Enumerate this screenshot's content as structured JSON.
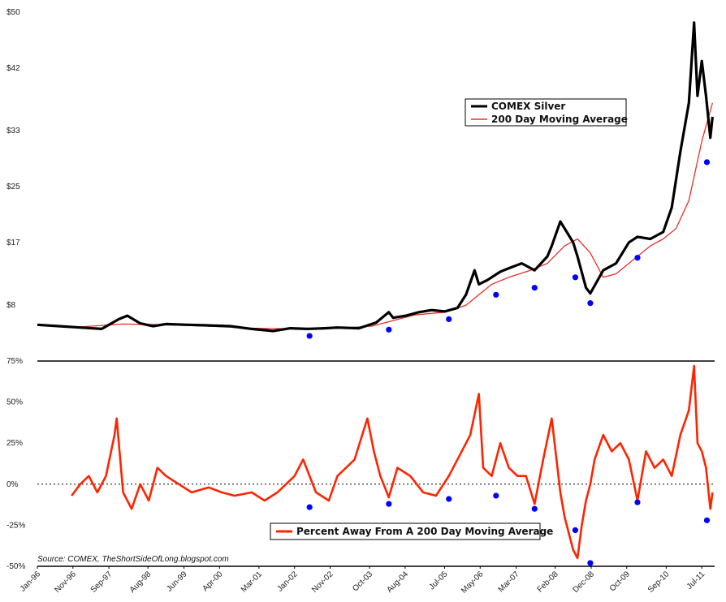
{
  "chart_data": [
    {
      "type": "line",
      "panel": "top",
      "title": "",
      "xlabel": "",
      "ylabel": "",
      "ylim": [
        0,
        50
      ],
      "y_ticks": [
        {
          "value": 8,
          "label": "$8"
        },
        {
          "value": 17,
          "label": "$17"
        },
        {
          "value": 25,
          "label": "$25"
        },
        {
          "value": 33,
          "label": "$33"
        },
        {
          "value": 42,
          "label": "$42"
        },
        {
          "value": 50,
          "label": "$50"
        }
      ],
      "legend": {
        "position": "upper-right",
        "entries": [
          {
            "label": "COMEX Silver",
            "color": "#000000"
          },
          {
            "label": "200 Day Moving Average",
            "color": "#e8302a"
          }
        ]
      },
      "series": [
        {
          "name": "COMEX Silver",
          "color": "#000000",
          "x": [
            1996.0,
            1996.5,
            1997.0,
            1997.5,
            1997.9,
            1998.1,
            1998.4,
            1998.7,
            1999.0,
            1999.5,
            2000.0,
            2000.5,
            2001.0,
            2001.5,
            2001.9,
            2002.3,
            2002.7,
            2003.0,
            2003.5,
            2003.9,
            2004.2,
            2004.3,
            2004.6,
            2004.9,
            2005.2,
            2005.5,
            2005.8,
            2006.0,
            2006.2,
            2006.3,
            2006.5,
            2006.8,
            2007.0,
            2007.3,
            2007.6,
            2007.9,
            2008.0,
            2008.2,
            2008.5,
            2008.6,
            2008.8,
            2008.9,
            2009.2,
            2009.5,
            2009.8,
            2010.0,
            2010.3,
            2010.6,
            2010.8,
            2011.0,
            2011.2,
            2011.32,
            2011.4,
            2011.5,
            2011.6,
            2011.7,
            2011.75
          ],
          "y": [
            5.2,
            5.0,
            4.8,
            4.6,
            6.0,
            6.5,
            5.4,
            5.0,
            5.3,
            5.2,
            5.1,
            5.0,
            4.6,
            4.3,
            4.7,
            4.6,
            4.7,
            4.8,
            4.7,
            5.5,
            7.0,
            6.2,
            6.5,
            7.0,
            7.3,
            7.1,
            7.6,
            9.5,
            13.0,
            11.0,
            11.6,
            12.8,
            13.3,
            14.0,
            13.0,
            15.0,
            16.5,
            20.0,
            17.0,
            15.0,
            10.5,
            9.7,
            13.0,
            14.0,
            17.0,
            17.8,
            17.5,
            18.5,
            22.0,
            30.0,
            37.0,
            48.5,
            38.0,
            43.0,
            38.0,
            32.0,
            35.0
          ]
        },
        {
          "name": "200 Day Moving Average",
          "color": "#e8302a",
          "x": [
            1996.0,
            1997.0,
            1998.0,
            1999.0,
            2000.0,
            2001.0,
            2002.0,
            2003.0,
            2003.8,
            2004.3,
            2004.8,
            2005.5,
            2006.0,
            2006.3,
            2006.6,
            2007.0,
            2007.5,
            2007.9,
            2008.3,
            2008.6,
            2008.9,
            2009.2,
            2009.5,
            2009.9,
            2010.3,
            2010.6,
            2010.9,
            2011.2,
            2011.5,
            2011.75
          ],
          "y": [
            5.1,
            4.9,
            5.3,
            5.2,
            5.0,
            4.7,
            4.6,
            4.7,
            5.0,
            5.8,
            6.6,
            7.0,
            8.0,
            9.5,
            11.0,
            12.0,
            13.0,
            14.0,
            16.5,
            17.5,
            15.5,
            12.0,
            12.5,
            14.5,
            16.5,
            17.5,
            19.0,
            23.0,
            31.5,
            37.0
          ]
        }
      ],
      "markers": {
        "color": "#0000ff",
        "points": [
          [
            2002.35,
            3.6
          ],
          [
            2004.2,
            4.5
          ],
          [
            2005.6,
            6.0
          ],
          [
            2006.7,
            9.5
          ],
          [
            2007.6,
            10.5
          ],
          [
            2008.55,
            12.0
          ],
          [
            2008.9,
            8.3
          ],
          [
            2010.0,
            14.8
          ],
          [
            2011.62,
            28.5
          ]
        ]
      }
    },
    {
      "type": "line",
      "panel": "bottom",
      "title": "",
      "xlabel": "",
      "ylabel": "",
      "ylim": [
        -50,
        75
      ],
      "y_ticks": [
        {
          "value": -50,
          "label": "-50%"
        },
        {
          "value": -25,
          "label": "-25%"
        },
        {
          "value": 0,
          "label": "0%"
        },
        {
          "value": 25,
          "label": "25%"
        },
        {
          "value": 50,
          "label": "50%"
        },
        {
          "value": 75,
          "label": "75%"
        }
      ],
      "legend": {
        "position": "bottom-center",
        "entries": [
          {
            "label": "Percent Away From A 200 Day Moving Average",
            "color": "#ff2400"
          }
        ]
      },
      "zero_line": "dotted",
      "series": [
        {
          "name": "Percent Away From A 200 Day Moving Average",
          "color": "#ff2400",
          "x": [
            1996.8,
            1997.0,
            1997.2,
            1997.4,
            1997.6,
            1997.8,
            1997.85,
            1998.0,
            1998.2,
            1998.4,
            1998.6,
            1998.8,
            1999.0,
            1999.3,
            1999.6,
            2000.0,
            2000.3,
            2000.6,
            2001.0,
            2001.3,
            2001.6,
            2002.0,
            2002.2,
            2002.5,
            2002.8,
            2003.0,
            2003.2,
            2003.4,
            2003.7,
            2003.85,
            2004.0,
            2004.2,
            2004.4,
            2004.7,
            2005.0,
            2005.3,
            2005.6,
            2005.9,
            2006.1,
            2006.3,
            2006.4,
            2006.6,
            2006.8,
            2007.0,
            2007.2,
            2007.4,
            2007.6,
            2007.8,
            2008.0,
            2008.2,
            2008.3,
            2008.5,
            2008.6,
            2008.7,
            2008.8,
            2008.9,
            2009.0,
            2009.2,
            2009.4,
            2009.6,
            2009.8,
            2010.0,
            2010.2,
            2010.4,
            2010.6,
            2010.8,
            2011.0,
            2011.2,
            2011.32,
            2011.4,
            2011.5,
            2011.6,
            2011.7,
            2011.75
          ],
          "y": [
            -7,
            0,
            5,
            -5,
            5,
            30,
            40,
            -5,
            -15,
            0,
            -10,
            10,
            5,
            0,
            -5,
            -2,
            -5,
            -7,
            -5,
            -10,
            -5,
            5,
            15,
            -5,
            -10,
            5,
            10,
            15,
            40,
            20,
            5,
            -8,
            10,
            5,
            -5,
            -7,
            5,
            20,
            30,
            55,
            10,
            5,
            25,
            10,
            5,
            5,
            -12,
            15,
            40,
            -5,
            -20,
            -40,
            -45,
            -25,
            -10,
            0,
            15,
            30,
            20,
            25,
            15,
            -10,
            20,
            10,
            15,
            5,
            30,
            45,
            72,
            25,
            20,
            10,
            -15,
            -5
          ]
        }
      ],
      "markers": {
        "color": "#0000ff",
        "points": [
          [
            2002.35,
            -14
          ],
          [
            2004.2,
            -12
          ],
          [
            2005.6,
            -9
          ],
          [
            2006.7,
            -7
          ],
          [
            2007.6,
            -15
          ],
          [
            2008.55,
            -28
          ],
          [
            2008.9,
            -48
          ],
          [
            2010.0,
            -11
          ],
          [
            2011.62,
            -22
          ]
        ]
      }
    }
  ],
  "x_axis": {
    "xlim": [
      1996.0,
      2011.8
    ],
    "ticks": [
      {
        "value": 1996.0,
        "label": "Jan-96"
      },
      {
        "value": 1996.83,
        "label": "Nov-96"
      },
      {
        "value": 1997.67,
        "label": "Sep-97"
      },
      {
        "value": 1998.58,
        "label": "Aug-98"
      },
      {
        "value": 1999.42,
        "label": "Jun-99"
      },
      {
        "value": 2000.25,
        "label": "Apr-00"
      },
      {
        "value": 2001.17,
        "label": "Mar-01"
      },
      {
        "value": 2002.0,
        "label": "Jan-02"
      },
      {
        "value": 2002.83,
        "label": "Nov-02"
      },
      {
        "value": 2003.75,
        "label": "Oct-03"
      },
      {
        "value": 2004.58,
        "label": "Aug-04"
      },
      {
        "value": 2005.5,
        "label": "Jul-05"
      },
      {
        "value": 2006.33,
        "label": "May-06"
      },
      {
        "value": 2007.17,
        "label": "Mar-07"
      },
      {
        "value": 2008.08,
        "label": "Feb-08"
      },
      {
        "value": 2008.92,
        "label": "Dec-08"
      },
      {
        "value": 2009.75,
        "label": "Oct-09"
      },
      {
        "value": 2010.67,
        "label": "Sep-10"
      },
      {
        "value": 2011.5,
        "label": "Jul-11"
      }
    ]
  },
  "source": "Source: COMEX, TheShortSideOfLong.blogspot.com"
}
